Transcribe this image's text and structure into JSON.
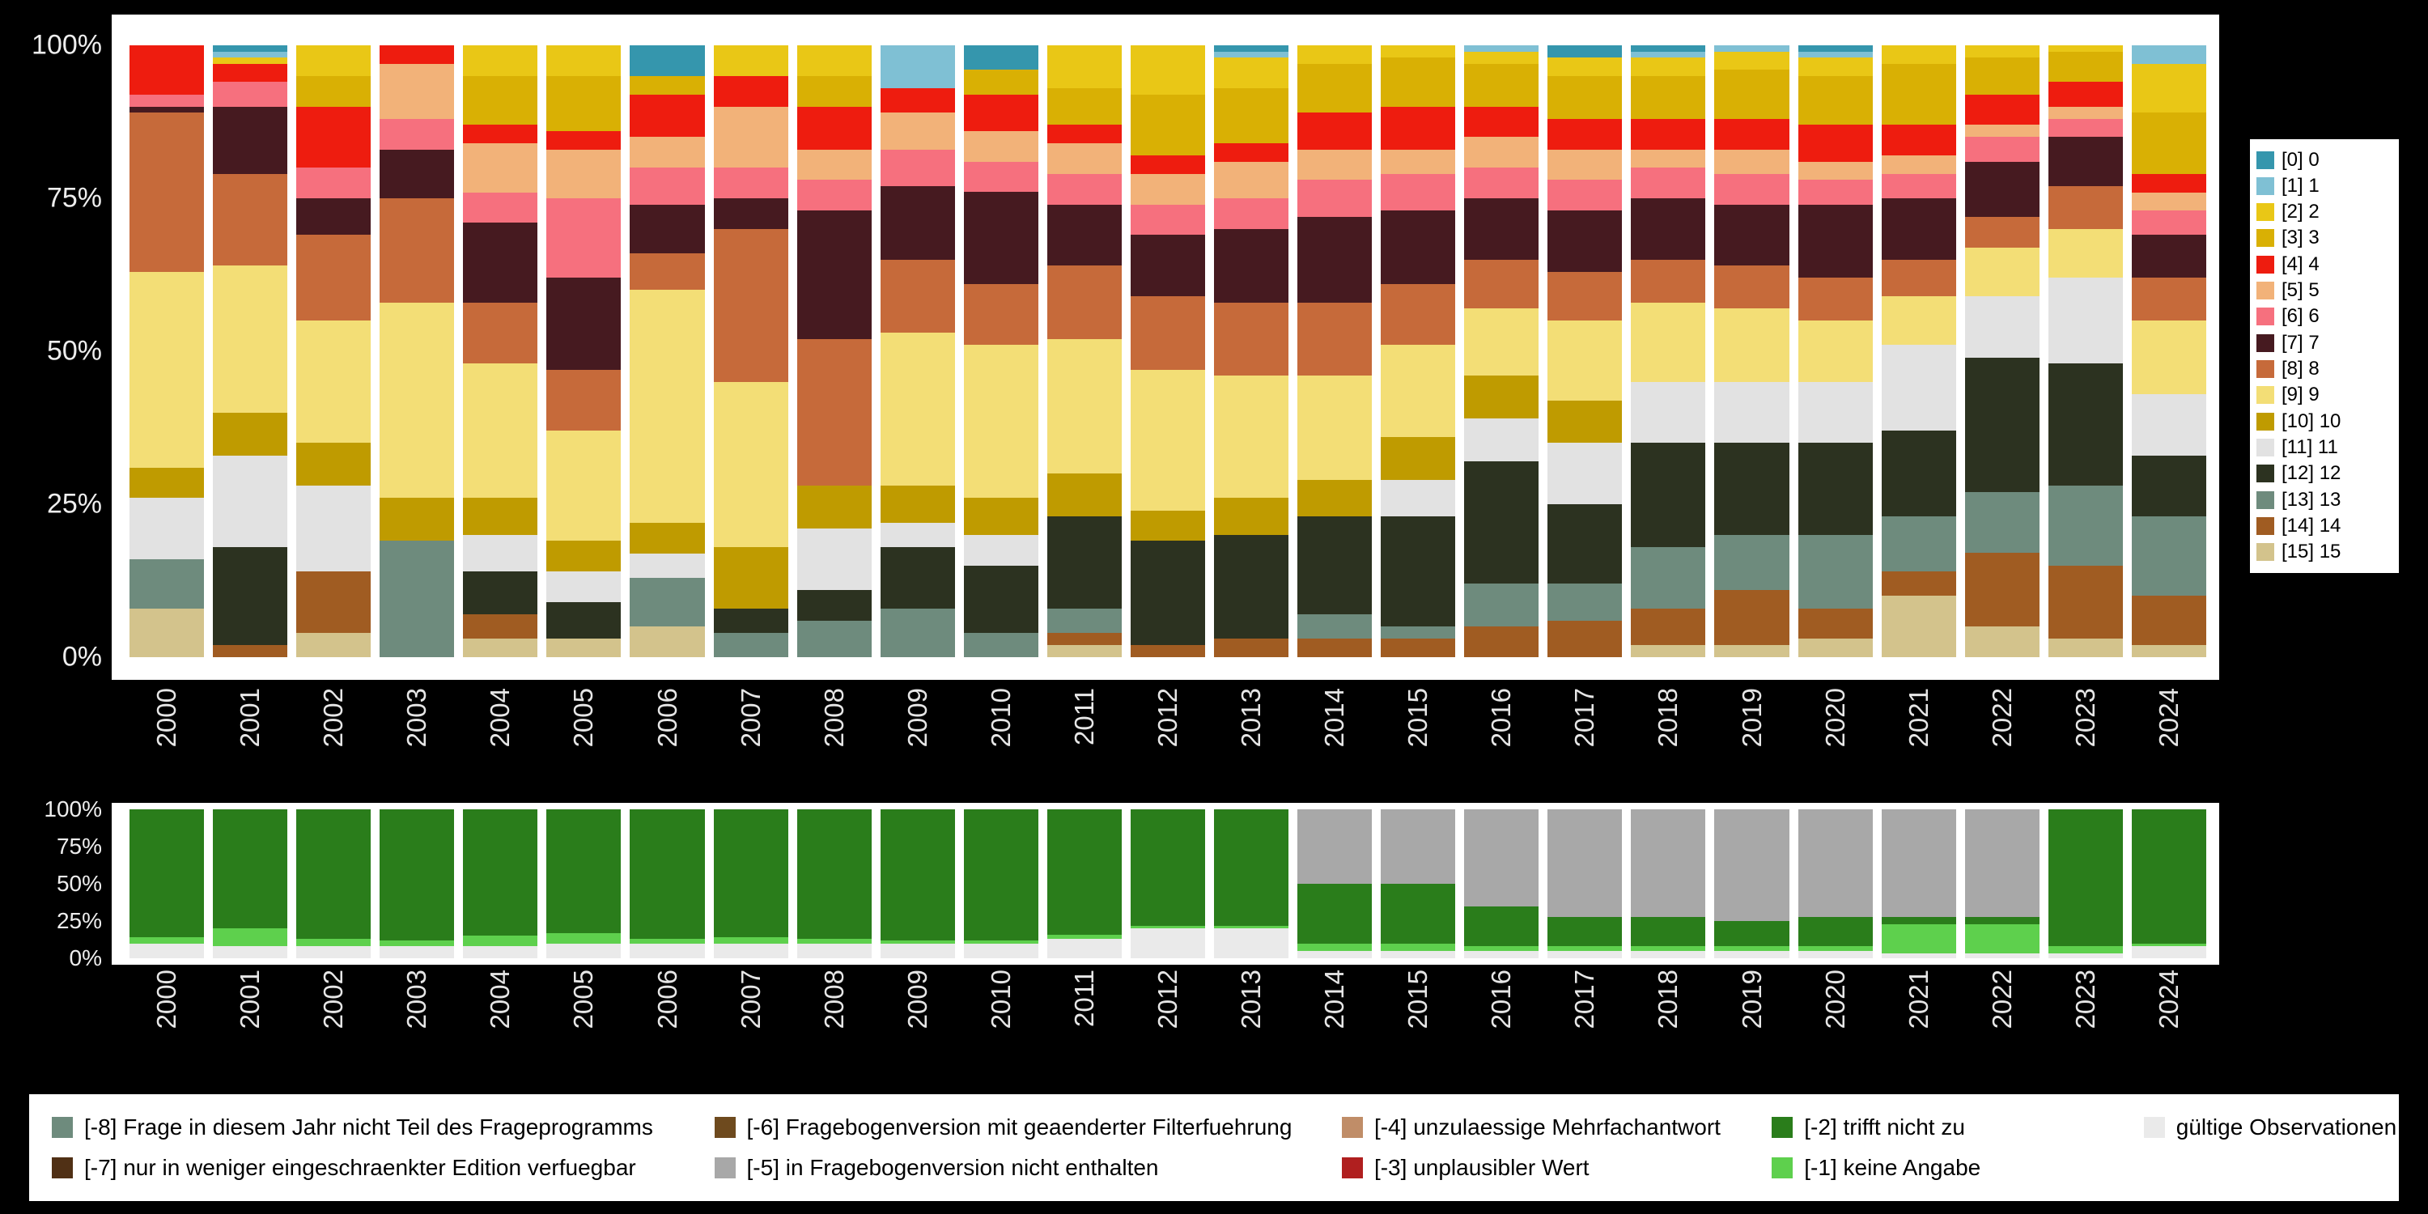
{
  "page": {
    "background": "#000000",
    "panel_background": "#ffffff",
    "axis_text_color": "#ededed"
  },
  "chart_data": [
    {
      "id": "values-by-year",
      "type": "bar",
      "stacked": true,
      "unit": "percent",
      "title": "",
      "xlabel": "",
      "ylabel": "",
      "ylim": [
        0,
        100
      ],
      "grid": false,
      "legend_position": "right",
      "y_ticks": [
        "100%",
        "75%",
        "50%",
        "25%",
        "0%"
      ],
      "categories": [
        "2000",
        "2001",
        "2002",
        "2003",
        "2004",
        "2005",
        "2006",
        "2007",
        "2008",
        "2009",
        "2010",
        "2011",
        "2012",
        "2013",
        "2014",
        "2015",
        "2016",
        "2017",
        "2018",
        "2019",
        "2020",
        "2021",
        "2022",
        "2023",
        "2024"
      ],
      "series": [
        {
          "name": "[0] 0",
          "color": "#3596ad",
          "values": [
            0,
            1,
            0,
            0,
            0,
            0,
            5,
            0,
            0,
            0,
            4,
            0,
            0,
            1,
            0,
            0,
            0,
            2,
            1,
            0,
            1,
            0,
            0,
            0,
            0
          ]
        },
        {
          "name": "[1] 1",
          "color": "#7fc0d4",
          "values": [
            0,
            1,
            0,
            0,
            0,
            0,
            0,
            0,
            0,
            7,
            0,
            0,
            0,
            1,
            0,
            0,
            1,
            0,
            1,
            1,
            1,
            0,
            0,
            0,
            3
          ]
        },
        {
          "name": "[2] 2",
          "color": "#e9c716",
          "values": [
            0,
            1,
            5,
            0,
            5,
            5,
            0,
            5,
            5,
            0,
            0,
            7,
            8,
            5,
            3,
            2,
            2,
            3,
            3,
            3,
            3,
            3,
            2,
            1,
            8
          ]
        },
        {
          "name": "[3] 3",
          "color": "#d9b004",
          "values": [
            0,
            0,
            5,
            0,
            8,
            9,
            3,
            0,
            5,
            0,
            4,
            6,
            10,
            9,
            8,
            8,
            7,
            7,
            7,
            8,
            8,
            10,
            6,
            5,
            10
          ]
        },
        {
          "name": "[4] 4",
          "color": "#ee1c0f",
          "values": [
            8,
            3,
            10,
            3,
            3,
            3,
            7,
            5,
            7,
            4,
            6,
            3,
            3,
            3,
            6,
            7,
            5,
            5,
            5,
            5,
            6,
            5,
            5,
            4,
            3
          ]
        },
        {
          "name": "[5] 5",
          "color": "#f2b279",
          "values": [
            0,
            0,
            0,
            9,
            8,
            8,
            5,
            10,
            5,
            6,
            5,
            5,
            5,
            6,
            5,
            4,
            5,
            5,
            3,
            4,
            3,
            3,
            2,
            2,
            3
          ]
        },
        {
          "name": "[6] 6",
          "color": "#f6707e",
          "values": [
            2,
            4,
            5,
            5,
            5,
            13,
            6,
            5,
            5,
            6,
            5,
            5,
            5,
            5,
            6,
            6,
            5,
            5,
            5,
            5,
            4,
            4,
            4,
            3,
            4
          ]
        },
        {
          "name": "[7] 7",
          "color": "#461a20",
          "values": [
            1,
            11,
            6,
            8,
            13,
            15,
            8,
            5,
            21,
            12,
            15,
            10,
            10,
            12,
            14,
            12,
            10,
            10,
            10,
            10,
            12,
            10,
            9,
            8,
            7
          ]
        },
        {
          "name": "[8] 8",
          "color": "#c66a3a",
          "values": [
            26,
            15,
            14,
            17,
            10,
            10,
            6,
            25,
            24,
            12,
            10,
            12,
            12,
            12,
            12,
            10,
            8,
            8,
            7,
            7,
            7,
            6,
            5,
            7,
            7
          ]
        },
        {
          "name": "[9] 9",
          "color": "#f3de76",
          "values": [
            32,
            24,
            20,
            32,
            22,
            18,
            38,
            27,
            0,
            25,
            25,
            22,
            23,
            20,
            17,
            15,
            11,
            13,
            13,
            12,
            10,
            8,
            8,
            8,
            12
          ]
        },
        {
          "name": "[10] 10",
          "color": "#bf9b00",
          "values": [
            5,
            7,
            7,
            7,
            6,
            5,
            5,
            10,
            7,
            6,
            6,
            7,
            5,
            6,
            6,
            7,
            7,
            7,
            0,
            0,
            0,
            0,
            0,
            0,
            0
          ]
        },
        {
          "name": "[11] 11",
          "color": "#e2e2e2",
          "values": [
            10,
            15,
            14,
            0,
            6,
            5,
            4,
            0,
            10,
            4,
            5,
            0,
            0,
            0,
            0,
            6,
            7,
            10,
            10,
            10,
            10,
            14,
            10,
            14,
            10
          ]
        },
        {
          "name": "[12] 12",
          "color": "#2c3220",
          "values": [
            0,
            16,
            0,
            0,
            7,
            6,
            0,
            4,
            5,
            10,
            11,
            15,
            17,
            17,
            16,
            18,
            20,
            13,
            17,
            15,
            15,
            14,
            22,
            20,
            10
          ]
        },
        {
          "name": "[13] 13",
          "color": "#6e8b7d",
          "values": [
            8,
            0,
            0,
            19,
            0,
            0,
            8,
            4,
            6,
            8,
            4,
            4,
            0,
            0,
            4,
            2,
            7,
            6,
            10,
            9,
            12,
            9,
            10,
            13,
            13
          ]
        },
        {
          "name": "[14] 14",
          "color": "#a05c22",
          "values": [
            0,
            2,
            10,
            0,
            4,
            0,
            0,
            0,
            0,
            0,
            0,
            2,
            2,
            3,
            3,
            3,
            5,
            6,
            6,
            9,
            5,
            4,
            12,
            12,
            8
          ]
        },
        {
          "name": "[15] 15",
          "color": "#d3c38c",
          "values": [
            8,
            0,
            4,
            0,
            3,
            3,
            5,
            0,
            0,
            0,
            0,
            2,
            0,
            0,
            0,
            0,
            0,
            0,
            2,
            2,
            3,
            10,
            5,
            3,
            2
          ]
        }
      ]
    },
    {
      "id": "missings-by-year",
      "type": "bar",
      "stacked": true,
      "unit": "percent",
      "title": "",
      "xlabel": "",
      "ylabel": "",
      "ylim": [
        0,
        100
      ],
      "grid": false,
      "legend_position": "bottom",
      "y_ticks": [
        "100%",
        "75%",
        "50%",
        "25%",
        "0%"
      ],
      "categories": [
        "2000",
        "2001",
        "2002",
        "2003",
        "2004",
        "2005",
        "2006",
        "2007",
        "2008",
        "2009",
        "2010",
        "2011",
        "2012",
        "2013",
        "2014",
        "2015",
        "2016",
        "2017",
        "2018",
        "2019",
        "2020",
        "2021",
        "2022",
        "2023",
        "2024"
      ],
      "series": [
        {
          "name": "[-8] Frage in diesem Jahr nicht Teil des Frageprogramms",
          "color": "#6e8b7d",
          "values": [
            0,
            0,
            0,
            0,
            0,
            0,
            0,
            0,
            0,
            0,
            0,
            0,
            0,
            0,
            0,
            0,
            0,
            0,
            0,
            0,
            0,
            0,
            0,
            0,
            0
          ]
        },
        {
          "name": "[-7] nur in weniger eingeschraenkter Edition verfuegbar",
          "color": "#503015",
          "values": [
            0,
            0,
            0,
            0,
            0,
            0,
            0,
            0,
            0,
            0,
            0,
            0,
            0,
            0,
            0,
            0,
            0,
            0,
            0,
            0,
            0,
            0,
            0,
            0,
            0
          ]
        },
        {
          "name": "[-6] Fragebogenversion mit geaenderter Filterfuehrung",
          "color": "#6e4a1e",
          "values": [
            0,
            0,
            0,
            0,
            0,
            0,
            0,
            0,
            0,
            0,
            0,
            0,
            0,
            0,
            0,
            0,
            0,
            0,
            0,
            0,
            0,
            0,
            0,
            0,
            0
          ]
        },
        {
          "name": "[-5] in Fragebogenversion nicht enthalten",
          "color": "#a8a8a8",
          "values": [
            0,
            0,
            0,
            0,
            0,
            0,
            0,
            0,
            0,
            0,
            0,
            0,
            0,
            0,
            50,
            50,
            65,
            72,
            72,
            75,
            72,
            72,
            72,
            0,
            0
          ]
        },
        {
          "name": "[-4] unzulaessige Mehrfachantwort",
          "color": "#c08d68",
          "values": [
            0,
            0,
            0,
            0,
            0,
            0,
            0,
            0,
            0,
            0,
            0,
            0,
            0,
            0,
            0,
            0,
            0,
            0,
            0,
            0,
            0,
            0,
            0,
            0,
            0
          ]
        },
        {
          "name": "[-3] unplausibler Wert",
          "color": "#b01f1f",
          "values": [
            0,
            0,
            0,
            0,
            0,
            0,
            0,
            0,
            0,
            0,
            0,
            0,
            0,
            0,
            0,
            0,
            0,
            0,
            0,
            0,
            0,
            0,
            0,
            0,
            0
          ]
        },
        {
          "name": "[-2] trifft nicht zu",
          "color": "#2a7d1b",
          "values": [
            86,
            80,
            87,
            88,
            85,
            83,
            87,
            86,
            87,
            88,
            88,
            84,
            78,
            78,
            40,
            40,
            27,
            20,
            20,
            17,
            20,
            5,
            5,
            92,
            90
          ]
        },
        {
          "name": "[-1] keine Angabe",
          "color": "#5ed04d",
          "values": [
            4,
            12,
            5,
            4,
            7,
            7,
            3,
            4,
            3,
            2,
            2,
            3,
            2,
            2,
            5,
            5,
            3,
            3,
            3,
            3,
            3,
            20,
            20,
            5,
            2
          ]
        },
        {
          "name": "gültige Observationen",
          "color": "#eaeaea",
          "values": [
            10,
            8,
            8,
            8,
            8,
            10,
            10,
            10,
            10,
            10,
            10,
            13,
            20,
            20,
            5,
            5,
            5,
            5,
            5,
            5,
            5,
            3,
            3,
            3,
            8
          ]
        }
      ]
    }
  ]
}
